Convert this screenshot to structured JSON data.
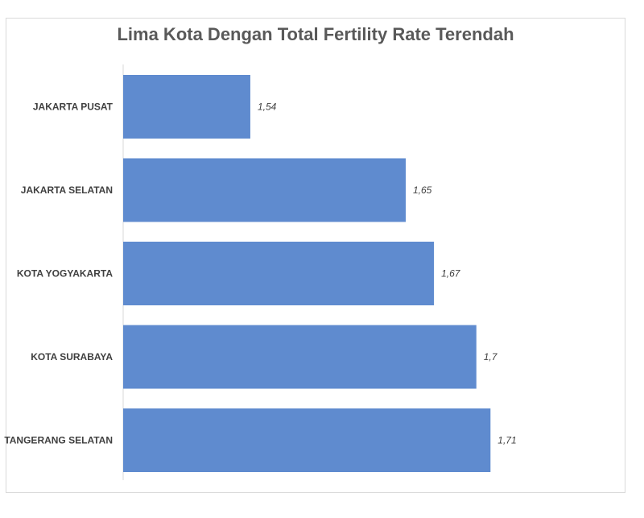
{
  "chart_data": {
    "type": "bar",
    "orientation": "horizontal",
    "title": "Lima Kota Dengan Total Fertility Rate Terendah",
    "categories": [
      "JAKARTA PUSAT",
      "JAKARTA SELATAN",
      "KOTA YOGYAKARTA",
      "KOTA SURABAYA",
      "TANGERANG SELATAN"
    ],
    "values": [
      1.54,
      1.65,
      1.67,
      1.7,
      1.71
    ],
    "value_labels": [
      "1,54",
      "1,65",
      "1,67",
      "1,7",
      "1,71"
    ],
    "xlim": [
      1.45,
      1.75
    ],
    "bar_color": "#5f8bcf",
    "grid": false,
    "legend": "none"
  }
}
